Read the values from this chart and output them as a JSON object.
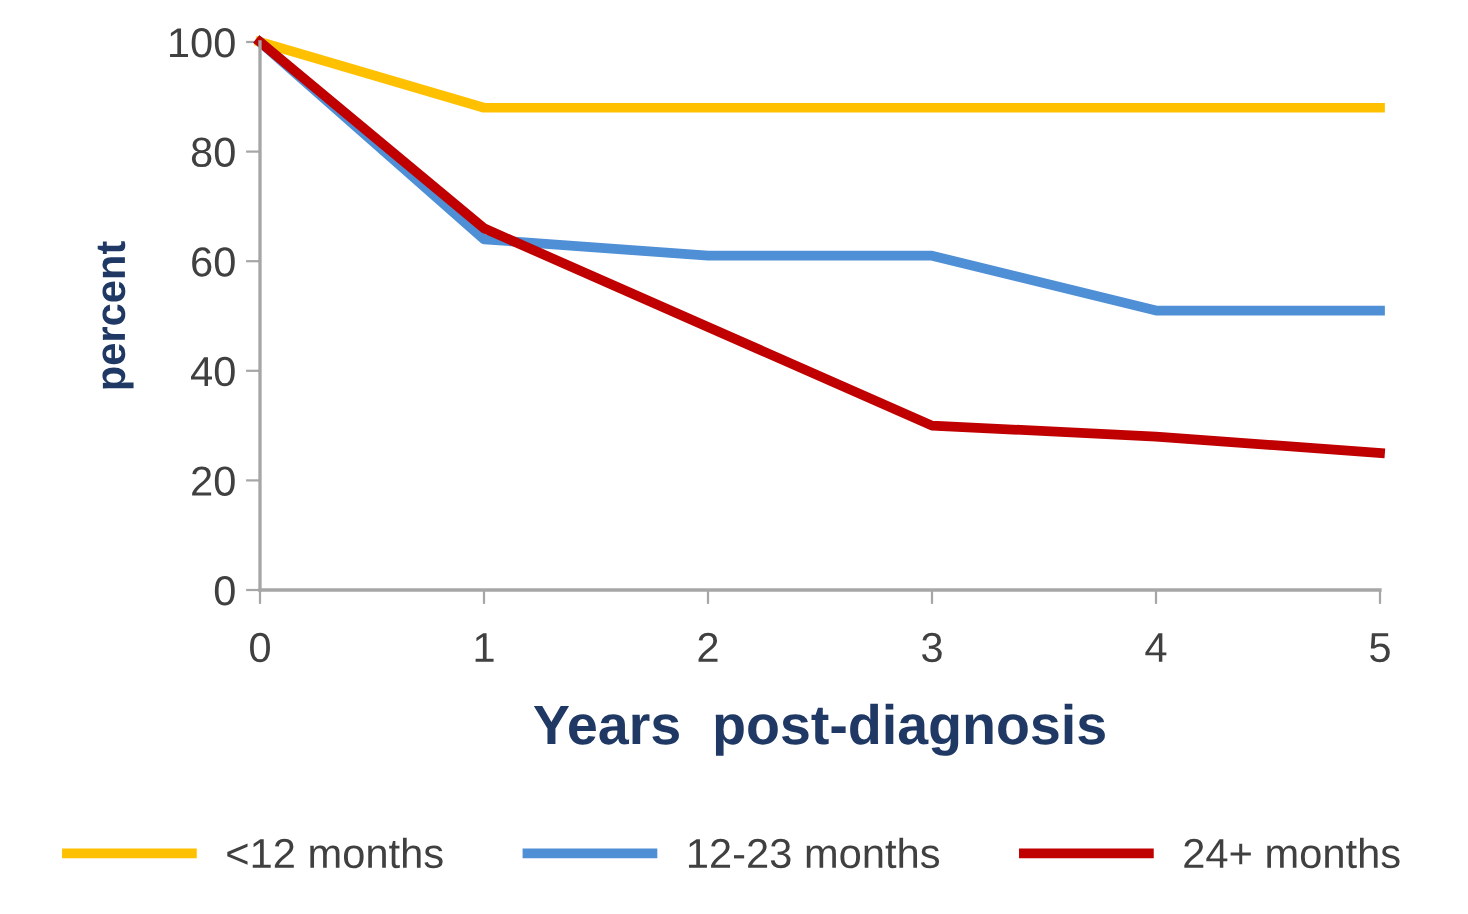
{
  "chart_data": {
    "type": "line",
    "xlabel": "Years  post-diagnosis",
    "ylabel": "percent",
    "x": [
      0,
      1,
      2,
      3,
      4,
      5
    ],
    "series": [
      {
        "name": "<12 months",
        "color": "#ffc000",
        "values": [
          100,
          88,
          88,
          88,
          88,
          88
        ]
      },
      {
        "name": "12-23 months",
        "color": "#4f8fd6",
        "values": [
          100,
          64,
          61,
          61,
          51,
          51
        ]
      },
      {
        "name": "24+ months",
        "color": "#c00000",
        "values": [
          100,
          66,
          48,
          30,
          28,
          25
        ]
      }
    ],
    "xlim": [
      0,
      5
    ],
    "xticks": [
      0,
      1,
      2,
      3,
      4,
      5
    ],
    "ylim": [
      0,
      100
    ],
    "yticks": [
      0,
      20,
      40,
      60,
      80,
      100
    ],
    "grid": false,
    "legend": "bottom",
    "marker": "none",
    "line_style": "solid"
  }
}
